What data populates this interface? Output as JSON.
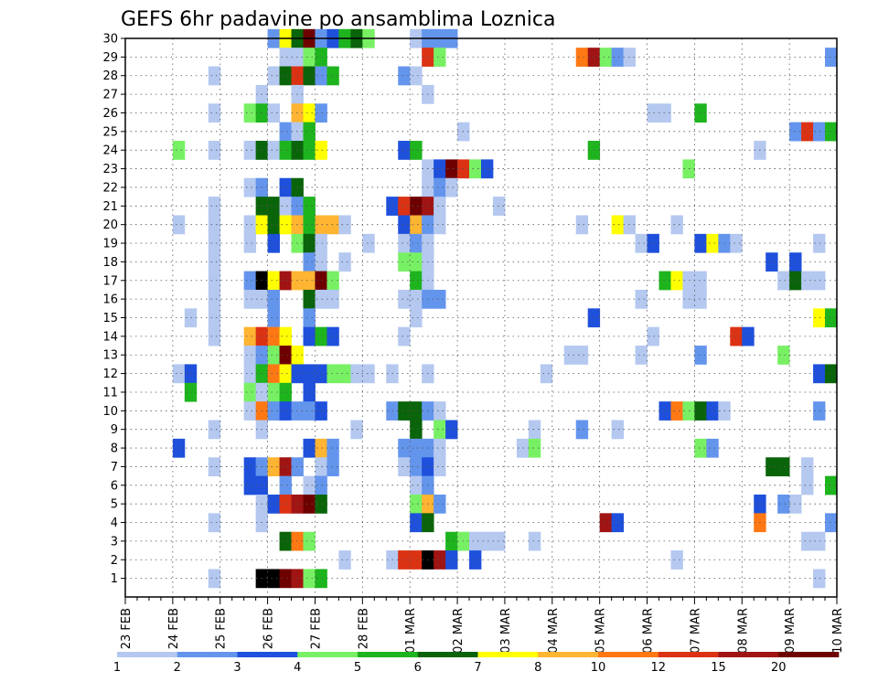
{
  "chart_data": {
    "type": "heatmap",
    "title": "GEFS 6hr padavine po ansamblima Loznica",
    "xlabel": "",
    "ylabel": "",
    "x_tick_labels": [
      "23 FEB",
      "24 FEB",
      "25 FEB",
      "26 FEB",
      "27 FEB",
      "28 FEB",
      "01 MAR",
      "02 MAR",
      "03 MAR",
      "04 MAR",
      "05 MAR",
      "06 MAR",
      "07 MAR",
      "08 MAR",
      "09 MAR",
      "10 MAR"
    ],
    "y_tick_labels": [
      "1",
      "2",
      "3",
      "4",
      "5",
      "6",
      "7",
      "8",
      "9",
      "10",
      "11",
      "12",
      "13",
      "14",
      "15",
      "16",
      "17",
      "18",
      "19",
      "20",
      "21",
      "22",
      "23",
      "24",
      "25",
      "26",
      "27",
      "28",
      "29",
      "30"
    ],
    "x_range": [
      "23 FEB 00Z",
      "10 MAR 00Z"
    ],
    "y_range": [
      0.5,
      30.5
    ],
    "time_step_hours": 6,
    "grid": "dotted",
    "colorbar": {
      "tick_labels": [
        "1",
        "2",
        "3",
        "4",
        "5",
        "6",
        "7",
        "8",
        "10",
        "12",
        "15",
        "20"
      ],
      "colors": [
        "#b4c8f0",
        "#6495ed",
        "#1e50dc",
        "#78f064",
        "#1eb41e",
        "#0a640a",
        "#ffff00",
        "#ffb432",
        "#ff7814",
        "#dc3214",
        "#a01414",
        "#6e0000"
      ]
    },
    "cells": [
      [
        30,
        12,
        2
      ],
      [
        30,
        13,
        7
      ],
      [
        30,
        14,
        6
      ],
      [
        30,
        15,
        12
      ],
      [
        30,
        16,
        2
      ],
      [
        30,
        17,
        3
      ],
      [
        30,
        18,
        5
      ],
      [
        30,
        19,
        6
      ],
      [
        30,
        20,
        4
      ],
      [
        30,
        24,
        1
      ],
      [
        30,
        25,
        2
      ],
      [
        30,
        26,
        2
      ],
      [
        30,
        27,
        2
      ],
      [
        29,
        13,
        1
      ],
      [
        29,
        14,
        1
      ],
      [
        29,
        15,
        4
      ],
      [
        29,
        16,
        5
      ],
      [
        29,
        25,
        10
      ],
      [
        29,
        26,
        4
      ],
      [
        29,
        38,
        9
      ],
      [
        29,
        39,
        11
      ],
      [
        29,
        40,
        4
      ],
      [
        29,
        41,
        2
      ],
      [
        29,
        42,
        1
      ],
      [
        29,
        59,
        2
      ],
      [
        28,
        7,
        1
      ],
      [
        28,
        12,
        1
      ],
      [
        28,
        13,
        6
      ],
      [
        28,
        14,
        10
      ],
      [
        28,
        15,
        6
      ],
      [
        28,
        16,
        2
      ],
      [
        28,
        17,
        5
      ],
      [
        28,
        23,
        2
      ],
      [
        28,
        24,
        1
      ],
      [
        27,
        11,
        1
      ],
      [
        27,
        14,
        1
      ],
      [
        27,
        25,
        1
      ],
      [
        26,
        7,
        1
      ],
      [
        26,
        10,
        4
      ],
      [
        26,
        11,
        5
      ],
      [
        26,
        12,
        1
      ],
      [
        26,
        14,
        8
      ],
      [
        26,
        15,
        7
      ],
      [
        26,
        16,
        2
      ],
      [
        26,
        44,
        1
      ],
      [
        26,
        45,
        1
      ],
      [
        26,
        48,
        5
      ],
      [
        25,
        13,
        2
      ],
      [
        25,
        14,
        1
      ],
      [
        25,
        15,
        5
      ],
      [
        25,
        28,
        1
      ],
      [
        25,
        56,
        2
      ],
      [
        25,
        57,
        10
      ],
      [
        25,
        58,
        2
      ],
      [
        25,
        59,
        5
      ],
      [
        24,
        4,
        4
      ],
      [
        24,
        7,
        1
      ],
      [
        24,
        10,
        1
      ],
      [
        24,
        11,
        6
      ],
      [
        24,
        12,
        1
      ],
      [
        24,
        13,
        5
      ],
      [
        24,
        14,
        6
      ],
      [
        24,
        15,
        5
      ],
      [
        24,
        16,
        7
      ],
      [
        24,
        23,
        3
      ],
      [
        24,
        24,
        5
      ],
      [
        24,
        39,
        5
      ],
      [
        24,
        53,
        1
      ],
      [
        23,
        25,
        1
      ],
      [
        23,
        26,
        3
      ],
      [
        23,
        27,
        12
      ],
      [
        23,
        28,
        10
      ],
      [
        23,
        29,
        4
      ],
      [
        23,
        30,
        3
      ],
      [
        23,
        47,
        4
      ],
      [
        22,
        10,
        1
      ],
      [
        22,
        11,
        2
      ],
      [
        22,
        13,
        3
      ],
      [
        22,
        14,
        6
      ],
      [
        22,
        25,
        1
      ],
      [
        22,
        26,
        2
      ],
      [
        22,
        27,
        1
      ],
      [
        21,
        7,
        1
      ],
      [
        21,
        11,
        6
      ],
      [
        21,
        12,
        6
      ],
      [
        21,
        13,
        1
      ],
      [
        21,
        14,
        2
      ],
      [
        21,
        15,
        5
      ],
      [
        21,
        22,
        3
      ],
      [
        21,
        23,
        10
      ],
      [
        21,
        24,
        12
      ],
      [
        21,
        25,
        11
      ],
      [
        21,
        26,
        1
      ],
      [
        21,
        31,
        1
      ],
      [
        20,
        4,
        1
      ],
      [
        20,
        7,
        1
      ],
      [
        20,
        10,
        1
      ],
      [
        20,
        11,
        7
      ],
      [
        20,
        12,
        6
      ],
      [
        20,
        13,
        7
      ],
      [
        20,
        14,
        8
      ],
      [
        20,
        15,
        5
      ],
      [
        20,
        16,
        8
      ],
      [
        20,
        17,
        8
      ],
      [
        20,
        18,
        1
      ],
      [
        20,
        23,
        3
      ],
      [
        20,
        24,
        8
      ],
      [
        20,
        25,
        2
      ],
      [
        20,
        26,
        1
      ],
      [
        20,
        38,
        1
      ],
      [
        20,
        41,
        7
      ],
      [
        20,
        42,
        1
      ],
      [
        20,
        46,
        1
      ],
      [
        19,
        7,
        1
      ],
      [
        19,
        10,
        1
      ],
      [
        19,
        12,
        3
      ],
      [
        19,
        14,
        4
      ],
      [
        19,
        15,
        6
      ],
      [
        19,
        16,
        1
      ],
      [
        19,
        20,
        1
      ],
      [
        19,
        23,
        1
      ],
      [
        19,
        24,
        2
      ],
      [
        19,
        25,
        1
      ],
      [
        19,
        43,
        1
      ],
      [
        19,
        44,
        3
      ],
      [
        19,
        48,
        3
      ],
      [
        19,
        49,
        7
      ],
      [
        19,
        50,
        2
      ],
      [
        19,
        51,
        1
      ],
      [
        19,
        58,
        1
      ],
      [
        18,
        7,
        1
      ],
      [
        18,
        15,
        2
      ],
      [
        18,
        16,
        1
      ],
      [
        18,
        18,
        1
      ],
      [
        18,
        23,
        4
      ],
      [
        18,
        24,
        4
      ],
      [
        18,
        25,
        1
      ],
      [
        18,
        54,
        3
      ],
      [
        18,
        56,
        3
      ],
      [
        17,
        7,
        1
      ],
      [
        17,
        10,
        2
      ],
      [
        17,
        11,
        13
      ],
      [
        17,
        12,
        7
      ],
      [
        17,
        13,
        11
      ],
      [
        17,
        14,
        8
      ],
      [
        17,
        15,
        8
      ],
      [
        17,
        16,
        12
      ],
      [
        17,
        17,
        4
      ],
      [
        17,
        24,
        5
      ],
      [
        17,
        25,
        1
      ],
      [
        17,
        45,
        5
      ],
      [
        17,
        46,
        7
      ],
      [
        17,
        47,
        1
      ],
      [
        17,
        48,
        1
      ],
      [
        17,
        55,
        1
      ],
      [
        17,
        56,
        6
      ],
      [
        17,
        57,
        1
      ],
      [
        17,
        58,
        1
      ],
      [
        16,
        7,
        1
      ],
      [
        16,
        10,
        1
      ],
      [
        16,
        11,
        1
      ],
      [
        16,
        12,
        2
      ],
      [
        16,
        15,
        6
      ],
      [
        16,
        16,
        1
      ],
      [
        16,
        17,
        1
      ],
      [
        16,
        23,
        1
      ],
      [
        16,
        24,
        1
      ],
      [
        16,
        25,
        2
      ],
      [
        16,
        26,
        2
      ],
      [
        16,
        43,
        1
      ],
      [
        16,
        47,
        1
      ],
      [
        16,
        48,
        1
      ],
      [
        15,
        5,
        1
      ],
      [
        15,
        7,
        1
      ],
      [
        15,
        12,
        2
      ],
      [
        15,
        15,
        2
      ],
      [
        15,
        24,
        1
      ],
      [
        15,
        39,
        3
      ],
      [
        15,
        58,
        7
      ],
      [
        15,
        59,
        5
      ],
      [
        14,
        7,
        1
      ],
      [
        14,
        10,
        8
      ],
      [
        14,
        11,
        10
      ],
      [
        14,
        12,
        9
      ],
      [
        14,
        13,
        7
      ],
      [
        14,
        15,
        3
      ],
      [
        14,
        16,
        5
      ],
      [
        14,
        17,
        3
      ],
      [
        14,
        23,
        1
      ],
      [
        14,
        44,
        1
      ],
      [
        14,
        51,
        10
      ],
      [
        14,
        52,
        3
      ],
      [
        13,
        10,
        1
      ],
      [
        13,
        11,
        2
      ],
      [
        13,
        12,
        4
      ],
      [
        13,
        13,
        12
      ],
      [
        13,
        14,
        7
      ],
      [
        13,
        37,
        1
      ],
      [
        13,
        38,
        1
      ],
      [
        13,
        43,
        1
      ],
      [
        13,
        48,
        2
      ],
      [
        13,
        55,
        4
      ],
      [
        12,
        4,
        1
      ],
      [
        12,
        5,
        3
      ],
      [
        12,
        10,
        1
      ],
      [
        12,
        11,
        5
      ],
      [
        12,
        12,
        9
      ],
      [
        12,
        13,
        7
      ],
      [
        12,
        14,
        3
      ],
      [
        12,
        15,
        3
      ],
      [
        12,
        16,
        3
      ],
      [
        12,
        17,
        4
      ],
      [
        12,
        18,
        4
      ],
      [
        12,
        19,
        1
      ],
      [
        12,
        20,
        1
      ],
      [
        12,
        22,
        1
      ],
      [
        12,
        25,
        1
      ],
      [
        12,
        35,
        1
      ],
      [
        12,
        58,
        3
      ],
      [
        12,
        59,
        6
      ],
      [
        11,
        5,
        5
      ],
      [
        11,
        10,
        4
      ],
      [
        11,
        11,
        1
      ],
      [
        11,
        12,
        4
      ],
      [
        11,
        13,
        5
      ],
      [
        11,
        15,
        3
      ],
      [
        10,
        10,
        1
      ],
      [
        10,
        11,
        9
      ],
      [
        10,
        12,
        2
      ],
      [
        10,
        13,
        3
      ],
      [
        10,
        14,
        2
      ],
      [
        10,
        15,
        2
      ],
      [
        10,
        16,
        3
      ],
      [
        10,
        22,
        2
      ],
      [
        10,
        23,
        6
      ],
      [
        10,
        24,
        6
      ],
      [
        10,
        25,
        2
      ],
      [
        10,
        26,
        1
      ],
      [
        10,
        45,
        3
      ],
      [
        10,
        46,
        9
      ],
      [
        10,
        47,
        4
      ],
      [
        10,
        48,
        6
      ],
      [
        10,
        49,
        3
      ],
      [
        10,
        50,
        1
      ],
      [
        10,
        58,
        2
      ],
      [
        9,
        7,
        1
      ],
      [
        9,
        11,
        1
      ],
      [
        9,
        19,
        1
      ],
      [
        9,
        24,
        6
      ],
      [
        9,
        26,
        4
      ],
      [
        9,
        27,
        3
      ],
      [
        9,
        34,
        1
      ],
      [
        9,
        38,
        2
      ],
      [
        9,
        41,
        1
      ],
      [
        8,
        4,
        3
      ],
      [
        8,
        15,
        3
      ],
      [
        8,
        16,
        8
      ],
      [
        8,
        17,
        2
      ],
      [
        8,
        23,
        2
      ],
      [
        8,
        24,
        2
      ],
      [
        8,
        25,
        2
      ],
      [
        8,
        26,
        1
      ],
      [
        8,
        33,
        1
      ],
      [
        8,
        34,
        4
      ],
      [
        8,
        48,
        4
      ],
      [
        8,
        49,
        2
      ],
      [
        7,
        7,
        1
      ],
      [
        7,
        10,
        3
      ],
      [
        7,
        11,
        2
      ],
      [
        7,
        12,
        8
      ],
      [
        7,
        13,
        11
      ],
      [
        7,
        14,
        2
      ],
      [
        7,
        16,
        1
      ],
      [
        7,
        17,
        2
      ],
      [
        7,
        23,
        1
      ],
      [
        7,
        24,
        2
      ],
      [
        7,
        25,
        3
      ],
      [
        7,
        26,
        1
      ],
      [
        7,
        54,
        6
      ],
      [
        7,
        55,
        6
      ],
      [
        7,
        57,
        1
      ],
      [
        6,
        10,
        3
      ],
      [
        6,
        11,
        3
      ],
      [
        6,
        13,
        2
      ],
      [
        6,
        15,
        1
      ],
      [
        6,
        16,
        2
      ],
      [
        6,
        24,
        1
      ],
      [
        6,
        25,
        2
      ],
      [
        6,
        57,
        1
      ],
      [
        6,
        59,
        5
      ],
      [
        5,
        11,
        1
      ],
      [
        5,
        12,
        3
      ],
      [
        5,
        13,
        10
      ],
      [
        5,
        14,
        11
      ],
      [
        5,
        15,
        12
      ],
      [
        5,
        16,
        6
      ],
      [
        5,
        24,
        4
      ],
      [
        5,
        25,
        8
      ],
      [
        5,
        26,
        2
      ],
      [
        5,
        53,
        3
      ],
      [
        5,
        55,
        2
      ],
      [
        5,
        56,
        1
      ],
      [
        4,
        7,
        1
      ],
      [
        4,
        11,
        1
      ],
      [
        4,
        24,
        3
      ],
      [
        4,
        25,
        6
      ],
      [
        4,
        40,
        11
      ],
      [
        4,
        41,
        3
      ],
      [
        4,
        53,
        9
      ],
      [
        4,
        59,
        2
      ],
      [
        3,
        13,
        6
      ],
      [
        3,
        14,
        9
      ],
      [
        3,
        15,
        4
      ],
      [
        3,
        27,
        5
      ],
      [
        3,
        28,
        4
      ],
      [
        3,
        29,
        1
      ],
      [
        3,
        30,
        1
      ],
      [
        3,
        31,
        1
      ],
      [
        3,
        34,
        1
      ],
      [
        3,
        57,
        1
      ],
      [
        3,
        58,
        1
      ],
      [
        2,
        18,
        1
      ],
      [
        2,
        22,
        1
      ],
      [
        2,
        23,
        10
      ],
      [
        2,
        24,
        10
      ],
      [
        2,
        25,
        13
      ],
      [
        2,
        26,
        11
      ],
      [
        2,
        27,
        3
      ],
      [
        2,
        29,
        3
      ],
      [
        2,
        46,
        1
      ],
      [
        1,
        7,
        1
      ],
      [
        1,
        11,
        13
      ],
      [
        1,
        12,
        13
      ],
      [
        1,
        13,
        12
      ],
      [
        1,
        14,
        11
      ],
      [
        1,
        15,
        4
      ],
      [
        1,
        16,
        5
      ],
      [
        1,
        58,
        1
      ]
    ]
  }
}
